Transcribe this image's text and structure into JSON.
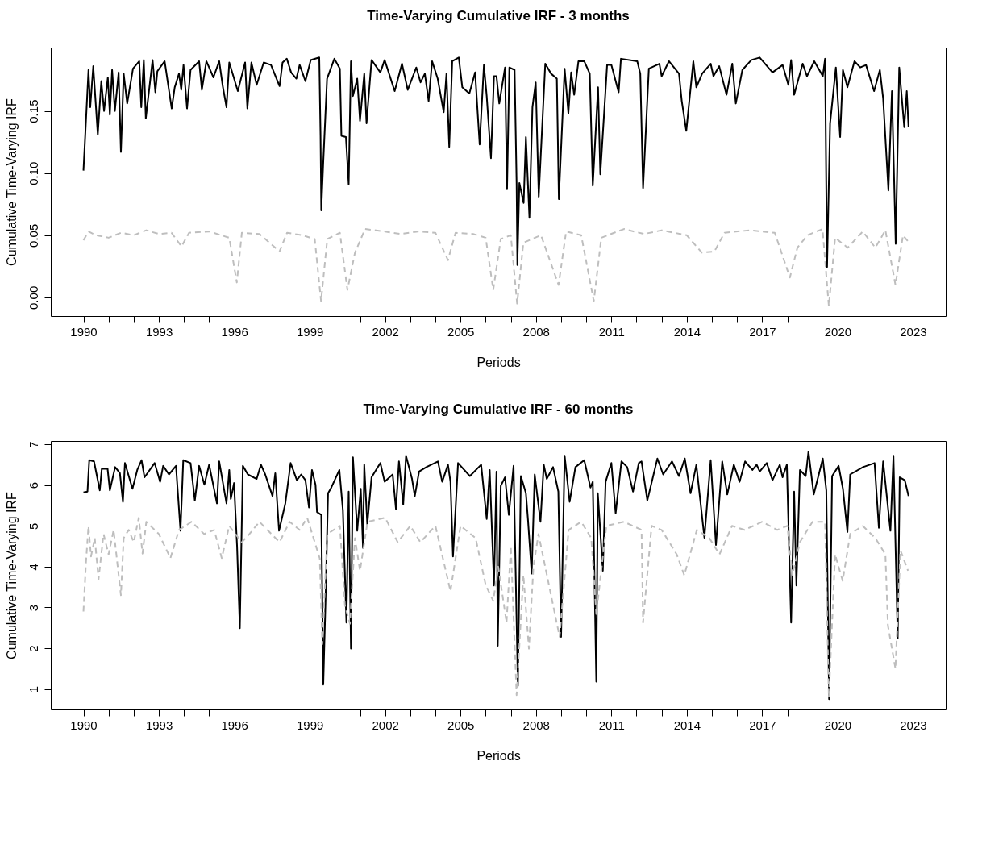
{
  "chart_data": [
    {
      "type": "line",
      "title": "Time-Varying Cumulative IRF - 3 months",
      "xlabel": "Periods",
      "ylabel": "Cumulative Time-Varying IRF",
      "xlim": [
        1988.7,
        2024.3
      ],
      "ylim": [
        -0.015,
        0.201
      ],
      "xticks": [
        1990,
        {
          "value": 1991,
          "label": null
        },
        {
          "value": 1992,
          "label": null
        },
        1993,
        {
          "value": 1994,
          "label": null
        },
        {
          "value": 1995,
          "label": null
        },
        1996,
        {
          "value": 1997,
          "label": null
        },
        {
          "value": 1998,
          "label": null
        },
        1999,
        {
          "value": 2000,
          "label": null
        },
        {
          "value": 2001,
          "label": null
        },
        2002,
        {
          "value": 2003,
          "label": null
        },
        {
          "value": 2004,
          "label": null
        },
        2005,
        {
          "value": 2006,
          "label": null
        },
        {
          "value": 2007,
          "label": null
        },
        2008,
        {
          "value": 2009,
          "label": null
        },
        {
          "value": 2010,
          "label": null
        },
        2011,
        {
          "value": 2012,
          "label": null
        },
        {
          "value": 2013,
          "label": null
        },
        2014,
        {
          "value": 2015,
          "label": null
        },
        {
          "value": 2016,
          "label": null
        },
        2017,
        {
          "value": 2018,
          "label": null
        },
        {
          "value": 2019,
          "label": null
        },
        2020,
        {
          "value": 2021,
          "label": null
        },
        {
          "value": 2022,
          "label": null
        },
        2023
      ],
      "yticks": [
        {
          "value": 0,
          "label": "0.00"
        },
        {
          "value": 0.05,
          "label": "0.05"
        },
        {
          "value": 0.1,
          "label": "0.10"
        },
        {
          "value": 0.15,
          "label": "0.15"
        }
      ],
      "series": [
        {
          "color": "#000000",
          "line_style": "solid",
          "x": [
            1990.0,
            1990.08,
            1990.2,
            1990.27,
            1990.39,
            1990.57,
            1990.71,
            1990.82,
            1990.97,
            1991.05,
            1991.14,
            1991.25,
            1991.4,
            1991.49,
            1991.6,
            1991.74,
            1991.97,
            1992.22,
            1992.3,
            1992.4,
            1992.48,
            1992.75,
            1992.86,
            1992.94,
            1993.23,
            1993.51,
            1993.63,
            1993.8,
            1993.89,
            1993.98,
            1994.12,
            1994.26,
            1994.6,
            1994.71,
            1994.89,
            1995.17,
            1995.4,
            1995.54,
            1995.69,
            1995.8,
            1996.14,
            1996.43,
            1996.52,
            1996.68,
            1996.89,
            1997.17,
            1997.46,
            1997.8,
            1997.92,
            1998.09,
            1998.26,
            1998.47,
            1998.6,
            1998.83,
            1999.04,
            1999.38,
            1999.43,
            1999.46,
            1999.54,
            1999.69,
            1999.98,
            2000.2,
            2000.26,
            2000.44,
            2000.55,
            2000.64,
            2000.72,
            2000.89,
            2001.0,
            2001.17,
            2001.26,
            2001.46,
            2001.81,
            2001.98,
            2002.38,
            2002.67,
            2002.9,
            2003.24,
            2003.41,
            2003.58,
            2003.73,
            2003.87,
            2004.09,
            2004.33,
            2004.44,
            2004.55,
            2004.67,
            2004.93,
            2005.07,
            2005.35,
            2005.58,
            2005.76,
            2005.93,
            2006.04,
            2006.21,
            2006.33,
            2006.43,
            2006.54,
            2006.77,
            2006.85,
            2006.94,
            2007.15,
            2007.23,
            2007.26,
            2007.34,
            2007.51,
            2007.6,
            2007.74,
            2007.86,
            2007.99,
            2008.11,
            2008.37,
            2008.6,
            2008.83,
            2008.91,
            2009.14,
            2009.29,
            2009.4,
            2009.52,
            2009.69,
            2009.92,
            2010.14,
            2010.26,
            2010.47,
            2010.56,
            2010.83,
            2011.0,
            2011.29,
            2011.38,
            2012.03,
            2012.15,
            2012.26,
            2012.49,
            2012.91,
            2013.0,
            2013.29,
            2013.69,
            2013.8,
            2013.98,
            2014.26,
            2014.38,
            2014.61,
            2014.95,
            2015.06,
            2015.29,
            2015.58,
            2015.81,
            2015.95,
            2016.21,
            2016.57,
            2016.9,
            2017.41,
            2017.81,
            2018.04,
            2018.15,
            2018.27,
            2018.61,
            2018.78,
            2019.07,
            2019.41,
            2019.5,
            2019.58,
            2019.7,
            2019.93,
            2020.1,
            2020.21,
            2020.39,
            2020.67,
            2020.9,
            2021.13,
            2021.45,
            2021.68,
            2021.81,
            2022.02,
            2022.16,
            2022.31,
            2022.45,
            2022.65,
            2022.75,
            2022.82
          ],
          "values": [
            0.102,
            0.134,
            0.183,
            0.153,
            0.186,
            0.131,
            0.174,
            0.15,
            0.177,
            0.147,
            0.183,
            0.15,
            0.181,
            0.117,
            0.18,
            0.156,
            0.184,
            0.19,
            0.153,
            0.191,
            0.144,
            0.191,
            0.165,
            0.182,
            0.19,
            0.152,
            0.169,
            0.18,
            0.167,
            0.187,
            0.152,
            0.183,
            0.19,
            0.167,
            0.19,
            0.177,
            0.19,
            0.17,
            0.153,
            0.189,
            0.166,
            0.189,
            0.152,
            0.189,
            0.171,
            0.189,
            0.187,
            0.17,
            0.189,
            0.192,
            0.181,
            0.176,
            0.187,
            0.174,
            0.191,
            0.193,
            0.131,
            0.07,
            0.109,
            0.176,
            0.192,
            0.184,
            0.13,
            0.129,
            0.091,
            0.19,
            0.162,
            0.176,
            0.142,
            0.18,
            0.14,
            0.191,
            0.181,
            0.191,
            0.166,
            0.188,
            0.167,
            0.185,
            0.173,
            0.18,
            0.158,
            0.19,
            0.176,
            0.149,
            0.18,
            0.121,
            0.19,
            0.193,
            0.169,
            0.164,
            0.181,
            0.123,
            0.187,
            0.162,
            0.112,
            0.178,
            0.178,
            0.156,
            0.185,
            0.087,
            0.185,
            0.183,
            0.092,
            0.026,
            0.092,
            0.076,
            0.129,
            0.064,
            0.153,
            0.173,
            0.081,
            0.188,
            0.18,
            0.176,
            0.079,
            0.184,
            0.148,
            0.181,
            0.163,
            0.19,
            0.19,
            0.18,
            0.09,
            0.169,
            0.099,
            0.187,
            0.187,
            0.165,
            0.192,
            0.19,
            0.18,
            0.088,
            0.184,
            0.188,
            0.178,
            0.19,
            0.18,
            0.158,
            0.134,
            0.19,
            0.169,
            0.18,
            0.188,
            0.178,
            0.186,
            0.163,
            0.188,
            0.156,
            0.183,
            0.191,
            0.193,
            0.181,
            0.187,
            0.171,
            0.191,
            0.163,
            0.188,
            0.178,
            0.19,
            0.178,
            0.192,
            0.024,
            0.14,
            0.185,
            0.129,
            0.183,
            0.169,
            0.19,
            0.185,
            0.187,
            0.166,
            0.183,
            0.16,
            0.086,
            0.166,
            0.043,
            0.185,
            0.137,
            0.166,
            0.137
          ]
        },
        {
          "color": "#bebebe",
          "line_style": "dashed",
          "x": [
            1990.0,
            1990.2,
            1990.5,
            1991.0,
            1991.5,
            1992.0,
            1992.5,
            1993.0,
            1993.5,
            1993.9,
            1994.2,
            1995.0,
            1995.8,
            1996.1,
            1996.3,
            1997.0,
            1997.8,
            1998.1,
            1998.7,
            1999.2,
            1999.45,
            1999.7,
            2000.2,
            2000.5,
            2000.8,
            2001.2,
            2002.0,
            2002.6,
            2003.3,
            2004.0,
            2004.5,
            2004.8,
            2005.5,
            2006.0,
            2006.3,
            2006.6,
            2007.0,
            2007.25,
            2007.5,
            2008.2,
            2008.9,
            2009.2,
            2009.8,
            2010.3,
            2010.6,
            2011.5,
            2012.3,
            2013.0,
            2014.0,
            2014.6,
            2015.1,
            2015.5,
            2016.5,
            2017.5,
            2018.1,
            2018.4,
            2018.8,
            2019.4,
            2019.65,
            2019.9,
            2020.4,
            2021.0,
            2021.5,
            2021.9,
            2022.3,
            2022.6,
            2022.8
          ],
          "values": [
            0.046,
            0.053,
            0.05,
            0.048,
            0.052,
            0.05,
            0.054,
            0.051,
            0.052,
            0.041,
            0.052,
            0.053,
            0.048,
            0.012,
            0.052,
            0.051,
            0.037,
            0.052,
            0.05,
            0.047,
            -0.003,
            0.047,
            0.052,
            0.006,
            0.036,
            0.055,
            0.053,
            0.051,
            0.053,
            0.052,
            0.03,
            0.052,
            0.051,
            0.048,
            0.006,
            0.047,
            0.05,
            -0.005,
            0.044,
            0.05,
            0.01,
            0.053,
            0.05,
            -0.003,
            0.048,
            0.055,
            0.051,
            0.054,
            0.05,
            0.036,
            0.037,
            0.052,
            0.054,
            0.052,
            0.016,
            0.04,
            0.05,
            0.055,
            -0.007,
            0.048,
            0.04,
            0.053,
            0.04,
            0.054,
            0.01,
            0.05,
            0.045
          ]
        }
      ]
    },
    {
      "type": "line",
      "title": "Time-Varying Cumulative IRF - 60 months",
      "xlabel": "Periods",
      "ylabel": "Cumulative Time-Varying IRF",
      "xlim": [
        1988.7,
        2024.3
      ],
      "ylim": [
        0.5,
        7.08
      ],
      "xticks": [
        1990,
        {
          "value": 1991,
          "label": null
        },
        {
          "value": 1992,
          "label": null
        },
        1993,
        {
          "value": 1994,
          "label": null
        },
        {
          "value": 1995,
          "label": null
        },
        1996,
        {
          "value": 1997,
          "label": null
        },
        {
          "value": 1998,
          "label": null
        },
        1999,
        {
          "value": 2000,
          "label": null
        },
        {
          "value": 2001,
          "label": null
        },
        2002,
        {
          "value": 2003,
          "label": null
        },
        {
          "value": 2004,
          "label": null
        },
        2005,
        {
          "value": 2006,
          "label": null
        },
        {
          "value": 2007,
          "label": null
        },
        2008,
        {
          "value": 2009,
          "label": null
        },
        {
          "value": 2010,
          "label": null
        },
        2011,
        {
          "value": 2012,
          "label": null
        },
        {
          "value": 2013,
          "label": null
        },
        2014,
        {
          "value": 2015,
          "label": null
        },
        {
          "value": 2016,
          "label": null
        },
        2017,
        {
          "value": 2018,
          "label": null
        },
        {
          "value": 2019,
          "label": null
        },
        2020,
        {
          "value": 2021,
          "label": null
        },
        {
          "value": 2022,
          "label": null
        },
        2023
      ],
      "yticks": [
        1,
        2,
        3,
        4,
        5,
        6,
        7
      ],
      "series": [
        {
          "color": "#000000",
          "line_style": "solid",
          "x": [
            1990.0,
            1990.16,
            1990.23,
            1990.42,
            1990.65,
            1990.73,
            1990.96,
            1991.05,
            1991.26,
            1991.45,
            1991.57,
            1991.65,
            1991.95,
            1992.14,
            1992.31,
            1992.43,
            1992.83,
            1993.05,
            1993.17,
            1993.4,
            1993.68,
            1993.86,
            1993.97,
            1994.26,
            1994.43,
            1994.6,
            1994.81,
            1995.0,
            1995.31,
            1995.4,
            1995.69,
            1995.8,
            1995.86,
            1995.99,
            1996.11,
            1996.22,
            1996.34,
            1996.54,
            1996.89,
            1997.06,
            1997.23,
            1997.52,
            1997.63,
            1997.78,
            1998.03,
            1998.24,
            1998.49,
            1998.66,
            1998.83,
            1998.97,
            1999.09,
            1999.23,
            1999.29,
            1999.46,
            1999.54,
            1999.63,
            1999.73,
            1999.86,
            2000.18,
            2000.32,
            2000.46,
            2000.55,
            2000.64,
            2000.72,
            2000.89,
            2001.03,
            2001.12,
            2001.17,
            2001.29,
            2001.46,
            2001.81,
            2001.98,
            2002.3,
            2002.43,
            2002.55,
            2002.72,
            2002.83,
            2003.07,
            2003.18,
            2003.35,
            2003.64,
            2004.1,
            2004.27,
            2004.5,
            2004.6,
            2004.7,
            2004.9,
            2005.37,
            2005.82,
            2006.04,
            2006.16,
            2006.33,
            2006.43,
            2006.48,
            2006.6,
            2006.77,
            2006.92,
            2007.11,
            2007.28,
            2007.4,
            2007.6,
            2007.68,
            2007.83,
            2007.95,
            2008.18,
            2008.31,
            2008.43,
            2008.68,
            2008.89,
            2009.0,
            2009.14,
            2009.34,
            2009.57,
            2009.92,
            2010.17,
            2010.26,
            2010.4,
            2010.46,
            2010.66,
            2010.77,
            2011.0,
            2011.17,
            2011.4,
            2011.63,
            2011.86,
            2012.09,
            2012.2,
            2012.43,
            2012.83,
            2013.06,
            2013.41,
            2013.69,
            2013.92,
            2014.15,
            2014.38,
            2014.7,
            2014.95,
            2015.16,
            2015.41,
            2015.61,
            2015.87,
            2016.1,
            2016.32,
            2016.61,
            2016.78,
            2016.9,
            2017.18,
            2017.41,
            2017.7,
            2017.81,
            2017.98,
            2018.15,
            2018.27,
            2018.36,
            2018.5,
            2018.73,
            2018.84,
            2019.05,
            2019.41,
            2019.55,
            2019.66,
            2019.78,
            2020.04,
            2020.21,
            2020.39,
            2020.5,
            2021.01,
            2021.47,
            2021.64,
            2021.81,
            2022.1,
            2022.22,
            2022.39,
            2022.47,
            2022.67,
            2022.82
          ],
          "values": [
            5.82,
            5.84,
            6.61,
            6.58,
            5.87,
            6.4,
            6.4,
            5.87,
            6.44,
            6.29,
            5.59,
            6.54,
            5.91,
            6.37,
            6.61,
            6.19,
            6.54,
            6.08,
            6.47,
            6.26,
            6.47,
            4.88,
            6.61,
            6.54,
            5.62,
            6.47,
            6.01,
            6.5,
            5.55,
            6.58,
            5.55,
            6.37,
            5.66,
            6.05,
            4.5,
            2.49,
            6.47,
            6.26,
            6.15,
            6.5,
            6.26,
            5.73,
            6.29,
            4.88,
            5.55,
            6.54,
            6.12,
            6.26,
            6.12,
            5.45,
            6.37,
            6.01,
            5.34,
            5.27,
            1.11,
            3.19,
            5.8,
            5.94,
            6.37,
            5.38,
            2.63,
            5.84,
            1.99,
            6.68,
            4.88,
            5.91,
            4.46,
            6.5,
            5.03,
            6.19,
            6.54,
            6.08,
            6.26,
            5.41,
            6.58,
            5.52,
            6.72,
            6.15,
            5.73,
            6.33,
            6.44,
            6.58,
            6.08,
            6.5,
            6.08,
            4.25,
            6.54,
            6.22,
            6.5,
            5.17,
            6.37,
            3.54,
            6.33,
            2.06,
            5.98,
            6.19,
            5.27,
            6.47,
            1.08,
            6.22,
            5.8,
            5.17,
            3.83,
            6.26,
            5.1,
            6.5,
            6.15,
            6.44,
            5.84,
            2.28,
            6.72,
            5.59,
            6.44,
            6.61,
            5.94,
            6.08,
            1.18,
            5.8,
            3.9,
            6.08,
            6.54,
            5.31,
            6.58,
            6.44,
            5.84,
            6.54,
            6.58,
            5.62,
            6.65,
            6.26,
            6.58,
            6.22,
            6.65,
            5.8,
            6.5,
            4.71,
            6.61,
            4.53,
            6.58,
            5.77,
            6.5,
            6.08,
            6.58,
            6.37,
            6.5,
            6.33,
            6.54,
            6.12,
            6.5,
            6.19,
            6.5,
            2.63,
            5.84,
            3.54,
            6.37,
            6.22,
            6.82,
            5.77,
            6.65,
            5.87,
            0.75,
            6.22,
            6.47,
            5.91,
            4.85,
            6.26,
            6.44,
            6.54,
            4.95,
            6.58,
            4.88,
            6.72,
            2.24,
            6.19,
            6.12,
            5.73
          ]
        },
        {
          "color": "#bebebe",
          "line_style": "dashed",
          "x": [
            1990.0,
            1990.1,
            1990.2,
            1990.3,
            1990.45,
            1990.6,
            1990.8,
            1991.0,
            1991.2,
            1991.49,
            1991.6,
            1991.8,
            1992.0,
            1992.2,
            1992.35,
            1992.5,
            1993.0,
            1993.46,
            1993.8,
            1994.3,
            1994.8,
            1995.2,
            1995.5,
            1995.8,
            1996.3,
            1996.6,
            1997.0,
            1997.8,
            1998.2,
            1998.6,
            1998.9,
            1999.4,
            1999.5,
            1999.7,
            2000.2,
            2000.4,
            2000.6,
            2000.8,
            2001.0,
            2001.3,
            2002.0,
            2002.5,
            2003.0,
            2003.4,
            2004.0,
            2004.6,
            2005.0,
            2005.6,
            2006.0,
            2006.3,
            2006.5,
            2006.83,
            2007.0,
            2007.23,
            2007.5,
            2007.72,
            2007.9,
            2008.1,
            2008.94,
            2009.3,
            2009.8,
            2010.2,
            2010.4,
            2010.8,
            2011.5,
            2012.2,
            2012.26,
            2012.6,
            2013.0,
            2013.6,
            2013.9,
            2014.4,
            2014.9,
            2015.3,
            2015.8,
            2016.3,
            2017.0,
            2017.6,
            2018.0,
            2018.2,
            2018.5,
            2019.0,
            2019.5,
            2019.65,
            2019.9,
            2020.2,
            2020.5,
            2021.0,
            2021.5,
            2021.9,
            2022.0,
            2022.3,
            2022.5,
            2022.8
          ],
          "values": [
            2.9,
            4.1,
            5.0,
            4.25,
            4.7,
            3.69,
            4.8,
            4.3,
            4.9,
            3.3,
            4.7,
            4.9,
            4.6,
            5.2,
            4.32,
            5.1,
            4.8,
            4.21,
            4.9,
            5.1,
            4.8,
            4.9,
            4.21,
            5.0,
            4.6,
            4.8,
            5.1,
            4.6,
            5.1,
            4.9,
            5.2,
            4.2,
            2.1,
            4.8,
            5.0,
            3.05,
            2.6,
            4.7,
            3.9,
            5.1,
            5.2,
            4.6,
            5.0,
            4.6,
            5.0,
            3.4,
            5.0,
            4.7,
            3.55,
            3.16,
            4.0,
            2.63,
            4.5,
            0.85,
            3.8,
            1.99,
            4.0,
            4.8,
            2.28,
            4.9,
            5.1,
            4.7,
            2.84,
            5.0,
            5.1,
            4.9,
            2.63,
            5.0,
            4.9,
            4.3,
            3.79,
            4.9,
            4.7,
            4.3,
            5.0,
            4.9,
            5.1,
            4.9,
            5.0,
            3.8,
            4.6,
            5.1,
            5.1,
            0.8,
            4.3,
            3.65,
            4.8,
            5.0,
            4.7,
            4.3,
            2.56,
            1.5,
            4.4,
            3.9
          ]
        }
      ]
    }
  ]
}
